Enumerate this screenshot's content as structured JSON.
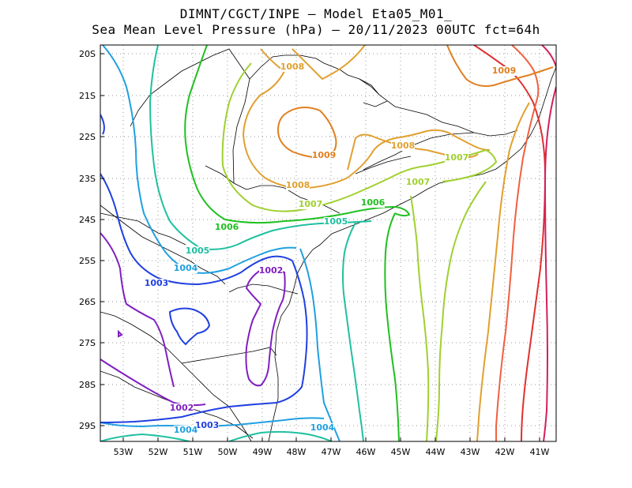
{
  "title": {
    "line1": "DIMNT/CGCT/INPE –  Model Eta05_M01_",
    "line2": "Sea Mean Level Pressure (hPa) – 20/11/2023 00UTC fct=64h"
  },
  "axes": {
    "lat_labels": [
      "20S",
      "21S",
      "22S",
      "23S",
      "24S",
      "25S",
      "26S",
      "27S",
      "28S",
      "29S"
    ],
    "lon_labels": [
      "53W",
      "52W",
      "51W",
      "50W",
      "49W",
      "48W",
      "47W",
      "46W",
      "45W",
      "44W",
      "43W",
      "42W",
      "41W"
    ]
  },
  "chart_data": {
    "type": "contour-map",
    "variable": "Sea Mean Level Pressure",
    "units": "hPa",
    "lon_range": [
      -53.6,
      -40.5
    ],
    "lat_range": [
      -29.4,
      -19.8
    ],
    "grid": true,
    "contour_labels": [
      {
        "value": "1008",
        "color": "#e0a030"
      },
      {
        "value": "1009",
        "color": "#e08020"
      },
      {
        "value": "1009",
        "color": "#e08020"
      },
      {
        "value": "1008",
        "color": "#e0a030"
      },
      {
        "value": "1008",
        "color": "#e0a030"
      },
      {
        "value": "1007",
        "color": "#a0d030"
      },
      {
        "value": "1007",
        "color": "#a0d030"
      },
      {
        "value": "1007",
        "color": "#a0d030"
      },
      {
        "value": "1006",
        "color": "#20c020"
      },
      {
        "value": "1006",
        "color": "#20c020"
      },
      {
        "value": "1005",
        "color": "#20c0a0"
      },
      {
        "value": "1005",
        "color": "#20c0a0"
      },
      {
        "value": "1004",
        "color": "#20a0e0"
      },
      {
        "value": "1003",
        "color": "#2040e0"
      },
      {
        "value": "1002",
        "color": "#8020c0"
      },
      {
        "value": "1002",
        "color": "#8020c0"
      },
      {
        "value": "1003",
        "color": "#2040e0"
      },
      {
        "value": "1004",
        "color": "#20a0e0"
      },
      {
        "value": "1004",
        "color": "#20a0e0"
      }
    ]
  }
}
